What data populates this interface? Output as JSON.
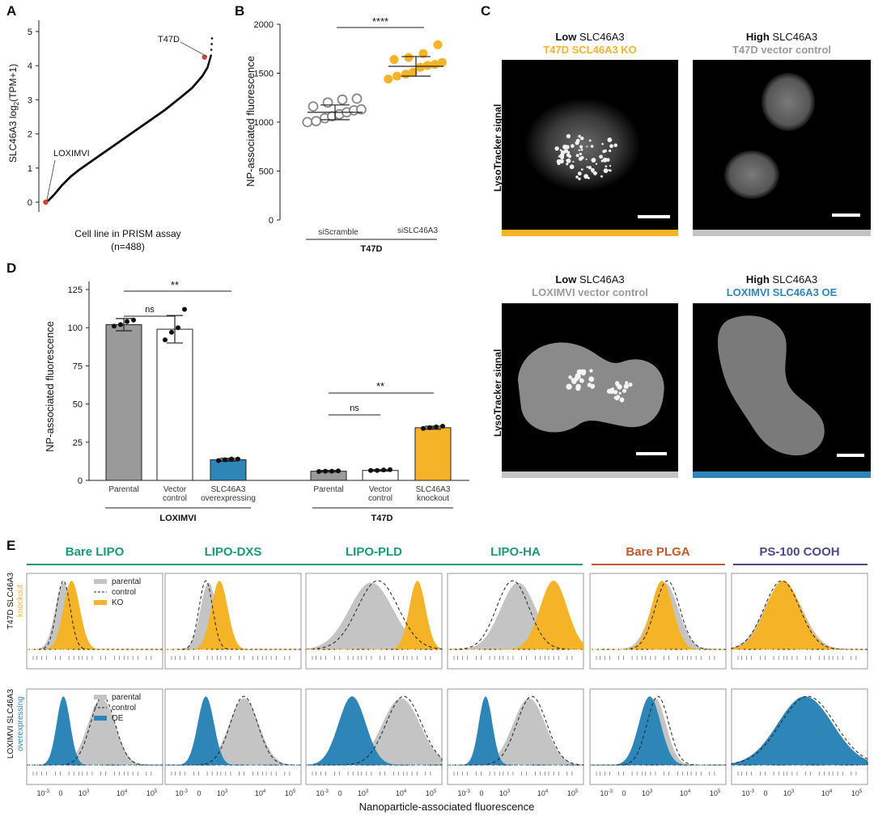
{
  "panels": {
    "A": "A",
    "B": "B",
    "C": "C",
    "D": "D",
    "E": "E"
  },
  "colors": {
    "orange": "#F5B428",
    "blue": "#2E86B8",
    "gray": "#9a9a9a",
    "lightgray": "#c4c4c4",
    "red": "#d94030",
    "teal": "#1a9a78",
    "rust": "#c4582a",
    "purple": "#4a4a8a"
  },
  "panelA": {
    "ylabel_main": "SLC46A3 log",
    "ylabel_sub": "2",
    "ylabel_tail": "(TPM+1)",
    "xlabel": "Cell line in PRISM assay",
    "xlabel2": "(n=488)",
    "yticks": [
      "0",
      "1",
      "2",
      "3",
      "4",
      "5"
    ],
    "annotations": {
      "high": "T47D",
      "low": "LOXIMVI"
    }
  },
  "panelB": {
    "ylabel": "NP-associated fluorescence",
    "yticks": [
      "0",
      "500",
      "1000",
      "1500",
      "2000"
    ],
    "groups": [
      "siScramble",
      "siSLC46A3"
    ],
    "bracket": "T47D",
    "sig": "****"
  },
  "panelC": {
    "images": [
      {
        "level": "Low",
        "gene": " SLC46A3",
        "line2": "T47D SCL46A3 KO",
        "color": "#F5B428"
      },
      {
        "level": "High",
        "gene": " SLC46A3",
        "line2": "T47D vector control",
        "color": "#9a9a9a"
      },
      {
        "level": "Low",
        "gene": " SLC46A3",
        "line2": "LOXIMVI vector control",
        "color": "#9a9a9a"
      },
      {
        "level": "High",
        "gene": " SLC46A3",
        "line2": "LOXIMVI SLC46A3 OE",
        "color": "#2E86B8"
      }
    ],
    "row_label": "LysoTracker signal"
  },
  "panelD": {
    "ylabel": "NP-associated fluorescence",
    "yticks": [
      "0",
      "25",
      "50",
      "75",
      "100",
      "125"
    ],
    "groups": [
      {
        "name": "LOXIMVI",
        "bars": [
          {
            "label": [
              "Parental"
            ]
          },
          {
            "label": [
              "Vector",
              "control"
            ]
          },
          {
            "label": [
              "SLC46A3",
              "overexpressing"
            ]
          }
        ]
      },
      {
        "name": "T47D",
        "bars": [
          {
            "label": [
              "Parental"
            ]
          },
          {
            "label": [
              "Vector",
              "control"
            ]
          },
          {
            "label": [
              "SLC46A3",
              "knockout"
            ]
          }
        ]
      }
    ],
    "sig_ns": "ns",
    "sig_star": "**"
  },
  "panelE": {
    "columns": [
      "Bare LIPO",
      "LIPO-DXS",
      "LIPO-PLD",
      "LIPO-HA",
      "Bare PLGA",
      "PS-100 COOH"
    ],
    "row1_label": "T47D SLC46A3",
    "row1_sub": "knockout",
    "row2_label": "LOXIMVI SLC46A3",
    "row2_sub": "overexpressing",
    "legend_row1": [
      "parental",
      "control",
      "KO"
    ],
    "legend_row2": [
      "parental",
      "control",
      "OE"
    ],
    "xlabel": "Nanoparticle-associated fluorescence",
    "xtick_base": "10",
    "xtick_exps": [
      "-3",
      "3",
      "4",
      "5"
    ],
    "xtick_zero": "0"
  },
  "chart_data": [
    {
      "type": "scatter",
      "panel": "A",
      "xlabel": "Cell line in PRISM assay (n=488)",
      "ylabel": "SLC46A3 log2(TPM+1)",
      "ylim": [
        0,
        5
      ],
      "x_rank": [
        1,
        10,
        25,
        50,
        75,
        100,
        150,
        200,
        250,
        300,
        350,
        400,
        430,
        460,
        475,
        485,
        488
      ],
      "values": [
        0.0,
        0.05,
        0.2,
        0.5,
        0.75,
        0.95,
        1.3,
        1.65,
        2.0,
        2.35,
        2.7,
        3.1,
        3.35,
        3.7,
        3.95,
        4.3,
        4.8
      ],
      "highlighted": [
        {
          "label": "LOXIMVI",
          "value": 0.0
        },
        {
          "label": "T47D",
          "value": 4.25
        }
      ]
    },
    {
      "type": "scatter",
      "panel": "B",
      "ylabel": "NP-associated fluorescence",
      "ylim": [
        0,
        2000
      ],
      "categories": [
        "siScramble",
        "siSLC46A3"
      ],
      "series": [
        {
          "name": "siScramble",
          "values": [
            1000,
            1010,
            1040,
            1060,
            1080,
            1100,
            1120,
            1130,
            1160,
            1200,
            1230,
            1240
          ],
          "mean": 1100,
          "sd": 75
        },
        {
          "name": "siSLC46A3",
          "values": [
            1440,
            1470,
            1490,
            1510,
            1560,
            1580,
            1590,
            1610,
            1640,
            1660,
            1700,
            1790
          ],
          "mean": 1570,
          "sd": 100
        }
      ]
    },
    {
      "type": "bar",
      "panel": "D",
      "ylabel": "NP-associated fluorescence",
      "ylim": [
        0,
        125
      ],
      "categories": [
        "Parental",
        "Vector control",
        "SLC46A3 overexpressing",
        "Parental",
        "Vector control",
        "SLC46A3 knockout"
      ],
      "values": [
        102,
        99,
        13.5,
        6,
        6.5,
        34.5
      ],
      "errors": [
        4,
        9,
        1,
        0.5,
        0.5,
        1
      ],
      "points": [
        [
          101,
          102,
          104,
          105
        ],
        [
          92,
          97,
          100,
          112
        ],
        [
          13,
          13.5,
          14,
          14
        ],
        [
          5.8,
          6,
          6,
          6.2
        ],
        [
          6.5,
          6.5,
          6.8,
          7
        ],
        [
          34,
          34.5,
          35,
          35.5
        ]
      ]
    }
  ]
}
